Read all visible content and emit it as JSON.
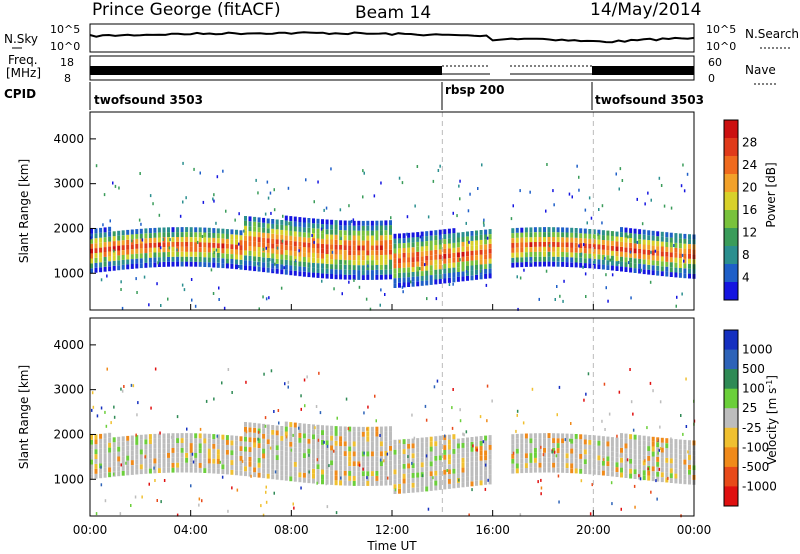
{
  "header": {
    "station": "Prince George (fitACF)",
    "beam": "Beam 14",
    "date": "14/May/2014"
  },
  "ancillary": {
    "nsky_label": "N.Sky",
    "nsky_ticks": [
      "10^5",
      "10^0"
    ],
    "nsearch_label": "N.Search",
    "nsearch_ticks": [
      "10^5",
      "10^0"
    ],
    "freq_label_1": "Freq.",
    "freq_label_2": "[MHz]",
    "freq_ticks": [
      "18",
      "8"
    ],
    "nave_label": "Nave",
    "nave_ticks": [
      "60",
      "0"
    ],
    "cpid_label": "CPID",
    "cpid_segments": [
      {
        "name": "twofsound 3503",
        "start": 0,
        "end": 14
      },
      {
        "name": "rbsp 200",
        "start": 14,
        "end": 20
      },
      {
        "name": "twofsound 3503",
        "start": 20,
        "end": 24
      }
    ]
  },
  "chart_data": [
    {
      "type": "heatmap",
      "title": "",
      "xlabel": "",
      "ylabel": "Slant Range [km]",
      "x_ticks": [
        "00:00",
        "04:00",
        "08:00",
        "12:00",
        "16:00",
        "20:00",
        "00:00"
      ],
      "y_ticks": [
        1000,
        2000,
        3000,
        4000
      ],
      "ylim": [
        180,
        4600
      ],
      "xlim_hours": [
        0,
        24
      ],
      "colorbar": {
        "label": "Power [dB]",
        "ticks": [
          4,
          8,
          12,
          16,
          20,
          24,
          28
        ],
        "range": [
          0,
          32
        ],
        "colors": [
          "#1515e0",
          "#1e5fc8",
          "#2b8f8f",
          "#3a9c5a",
          "#79c23c",
          "#d8d12a",
          "#f2a12a",
          "#ef6a1e",
          "#e03a1a",
          "#cc1010"
        ]
      },
      "data_gaps_hours": [
        [
          16.0,
          16.7
        ]
      ],
      "main_echo_band_km": [
        1000,
        1900
      ],
      "dashed_lines_hours": [
        14,
        20
      ]
    },
    {
      "type": "heatmap",
      "title": "",
      "xlabel": "Time UT",
      "ylabel": "Slant Range [km]",
      "x_ticks": [
        "00:00",
        "04:00",
        "08:00",
        "12:00",
        "16:00",
        "20:00",
        "00:00"
      ],
      "y_ticks": [
        1000,
        2000,
        3000,
        4000
      ],
      "ylim": [
        180,
        4600
      ],
      "xlim_hours": [
        0,
        24
      ],
      "colorbar": {
        "label": "Velocity [m s",
        "label_sup": "-1",
        "label_end": "]",
        "ticks": [
          "1000",
          "500",
          "100",
          "25",
          "-25",
          "-100",
          "-500",
          "-1000"
        ],
        "colors": [
          "#1530c0",
          "#2e63b8",
          "#2f8a55",
          "#6bcf3a",
          "#bdbdbd",
          "#f0c030",
          "#f08a1a",
          "#e84a1a",
          "#e01010"
        ]
      },
      "data_gaps_hours": [
        [
          16.0,
          16.7
        ]
      ],
      "main_echo_band_km": [
        1000,
        1900
      ],
      "dashed_lines_hours": [
        14,
        20
      ]
    }
  ]
}
